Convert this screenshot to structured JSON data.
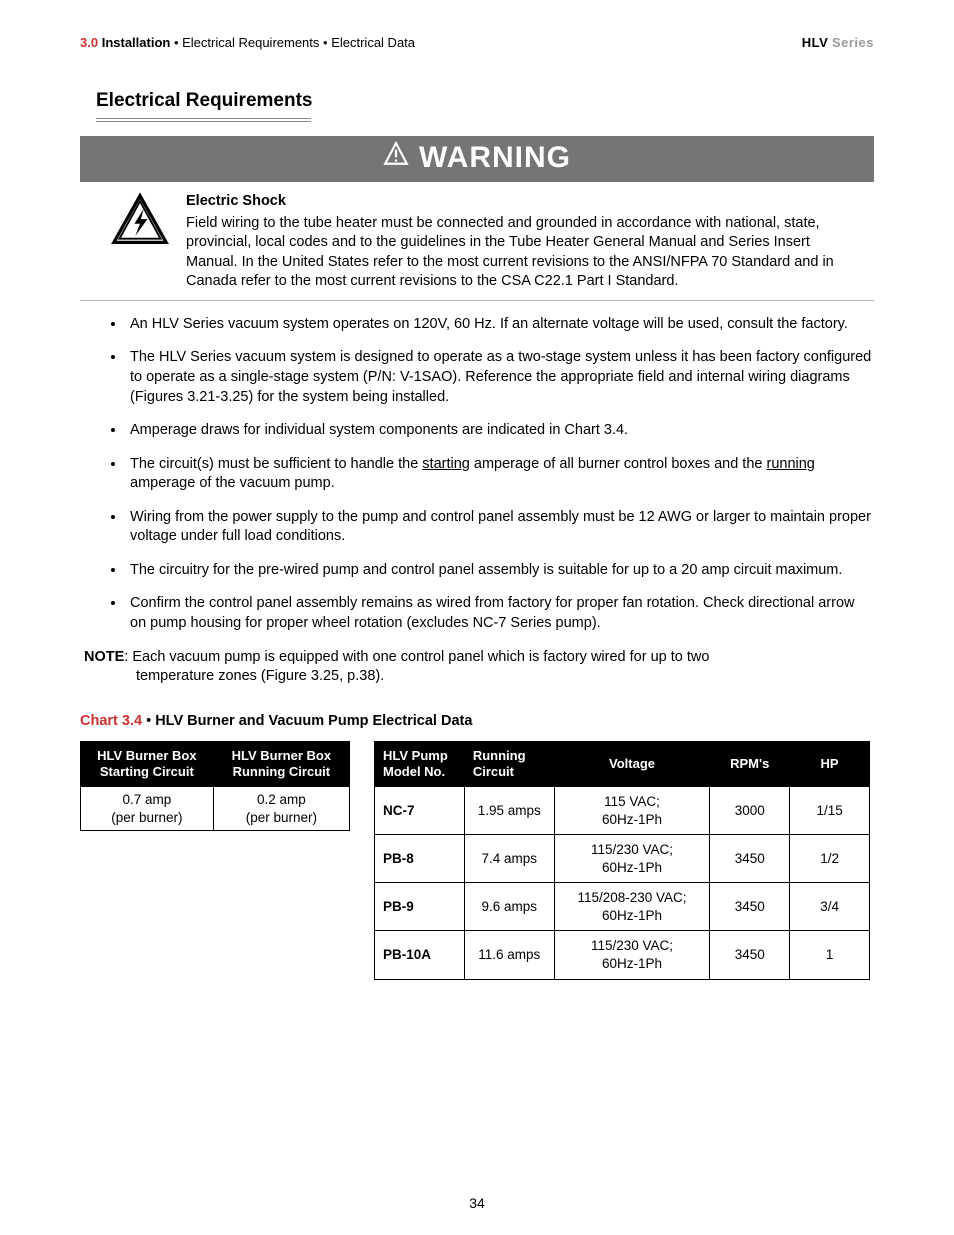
{
  "header": {
    "section_num": "3.0",
    "section_title": "Installation",
    "breadcrumb_sep": " • ",
    "breadcrumb_1": "Electrical Requirements",
    "breadcrumb_2": "Electrical Data",
    "series_bold": "HLV",
    "series_gray": "Series"
  },
  "section": {
    "heading": "Electrical Requirements"
  },
  "warning": {
    "banner": "WARNING",
    "subtitle": "Electric Shock",
    "body": "Field wiring to the tube heater must be connected and grounded in accordance with national, state, provincial, local codes and to the guidelines in the Tube Heater General Manual and Series Insert Manual. In the United States refer to the most current revisions to the ANSI/NFPA 70 Standard and in Canada refer to the most current revisions to the CSA C22.1 Part I Standard."
  },
  "bullets": [
    "An HLV Series vacuum system operates on 120V, 60 Hz.  If an alternate voltage will be used, consult the factory.",
    "The HLV Series vacuum system is designed to operate as a two-stage system unless it has been factory configured to operate as a single-stage system (P/N: V-1SAO).  Reference the appropriate field and internal wiring diagrams (Figures 3.21-3.25) for the system being installed.",
    "Amperage draws for individual system components are indicated in Chart 3.4.",
    "",
    "Wiring from the power supply to the pump and control panel assembly must be 12 AWG or larger to maintain proper voltage under full load conditions.",
    "The circuitry for the pre-wired pump and control panel assembly is suitable for up to a 20 amp circuit maximum.",
    "Confirm the control panel assembly remains as wired from factory for proper fan rotation.  Check directional arrow on pump housing for proper wheel rotation (excludes NC-7 Series pump)."
  ],
  "bullet4": {
    "pre": "The circuit(s) must be sufficient to handle the ",
    "u1": "starting",
    "mid": " amperage of all burner control boxes and the ",
    "u2": "running",
    "post": " amperage of the vacuum pump."
  },
  "note": {
    "label": "NOTE",
    "line1": ": Each vacuum pump is equipped with one control panel which is factory wired for up to two",
    "line2": "temperature zones (Figure 3.25, p.38)."
  },
  "chart": {
    "num": "Chart 3.4",
    "sep": " • ",
    "name": "HLV Burner and Vacuum Pump Electrical Data"
  },
  "burner_table": {
    "headers": [
      "HLV Burner Box Starting Circuit",
      "HLV Burner Box Running Circuit"
    ],
    "row": [
      "0.7 amp\n(per burner)",
      "0.2 amp\n(per burner)"
    ]
  },
  "pump_table": {
    "headers": [
      "HLV Pump Model No.",
      "Running Circuit",
      "Voltage",
      "RPM's",
      "HP"
    ],
    "col_widths": [
      "90px",
      "90px",
      "150px",
      "80px",
      "80px"
    ],
    "rows": [
      [
        "NC-7",
        "1.95 amps",
        "115 VAC;\n60Hz-1Ph",
        "3000",
        "1/15"
      ],
      [
        "PB-8",
        "7.4 amps",
        "115/230 VAC;\n60Hz-1Ph",
        "3450",
        "1/2"
      ],
      [
        "PB-9",
        "9.6 amps",
        "115/208-230 VAC;\n60Hz-1Ph",
        "3450",
        "3/4"
      ],
      [
        "PB-10A",
        "11.6 amps",
        "115/230 VAC;\n60Hz-1Ph",
        "3450",
        "1"
      ]
    ]
  },
  "page_number": "34",
  "colors": {
    "accent_red": "#c9322e",
    "banner_gray": "#757575",
    "divider_gray": "#b0b0b0",
    "muted_gray": "#9b9b9b"
  }
}
